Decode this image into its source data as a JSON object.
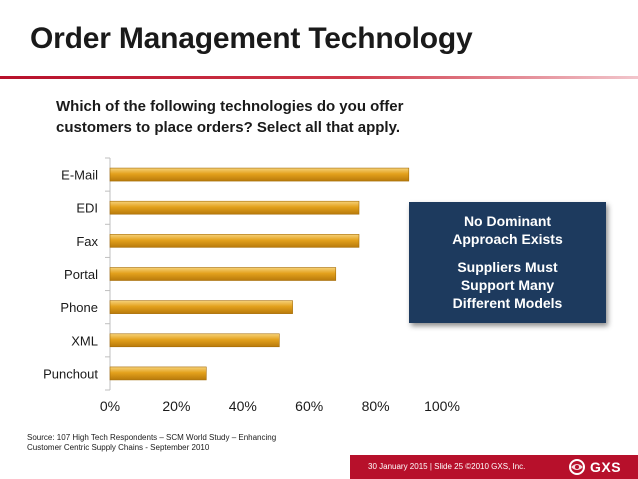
{
  "slide": {
    "title": "Order Management Technology",
    "question_line1": "Which of the following technologies do you offer",
    "question_line2": "customers to place orders?  Select all that apply."
  },
  "callout": {
    "line1": "No Dominant",
    "line2": "Approach Exists",
    "line3": "Suppliers Must",
    "line4": "Support Many",
    "line5": "Different Models"
  },
  "source": {
    "line1": "Source: 107 High Tech Respondents – SCM World Study – Enhancing",
    "line2": "Customer Centric Supply Chains - September 2010"
  },
  "footer": {
    "text": "30 January 2015  |  Slide 25  ©2010 GXS, Inc.",
    "logo": "GXS"
  },
  "colors": {
    "accent_red": "#b7102b",
    "bar_fill": "#e3a11c",
    "callout_bg": "#1d3a5e"
  },
  "chart_data": {
    "type": "bar",
    "orientation": "horizontal",
    "categories": [
      "E-Mail",
      "EDI",
      "Fax",
      "Portal",
      "Phone",
      "XML",
      "Punchout"
    ],
    "values": [
      90,
      75,
      75,
      68,
      55,
      51,
      29
    ],
    "unit": "%",
    "xlim": [
      0,
      100
    ],
    "ticks": [
      "0%",
      "20%",
      "40%",
      "60%",
      "80%",
      "100%"
    ],
    "grid": false,
    "title": "",
    "xlabel": "",
    "ylabel": ""
  }
}
